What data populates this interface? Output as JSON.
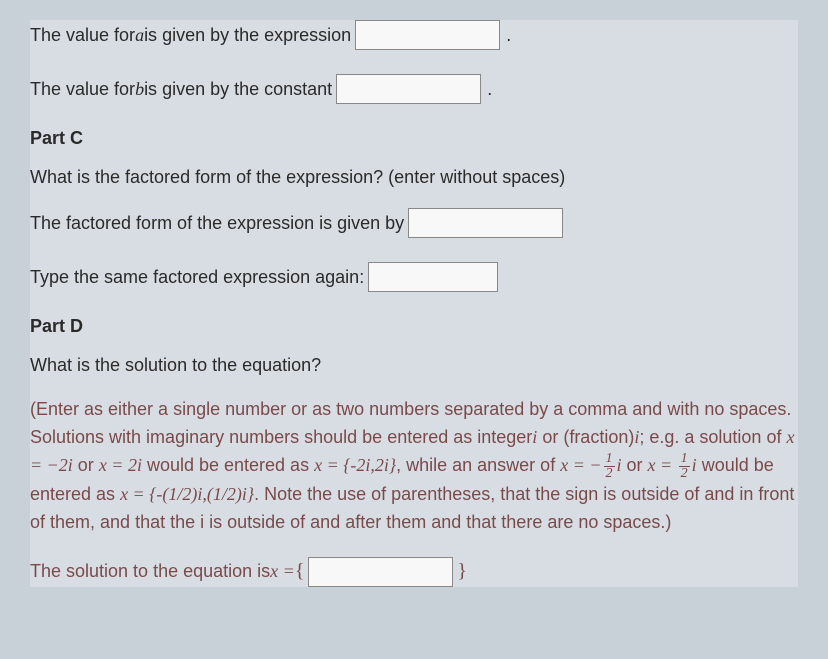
{
  "line_a": {
    "prefix": "The value for ",
    "variable": "a",
    "suffix": " is given by the expression",
    "trailing": "."
  },
  "line_b": {
    "prefix": "The value for ",
    "variable": "b",
    "suffix": " is given by the constant",
    "trailing": "."
  },
  "part_c": {
    "header": "Part C",
    "question": "What is the factored form of the expression? (enter without spaces)",
    "prompt1": "The factored form of the expression is given by",
    "prompt2": "Type the same factored expression again:"
  },
  "part_d": {
    "header": "Part D",
    "question": "What is the solution to the equation?",
    "instructions_1": "(Enter as either a single number or as two numbers separated by a comma and with no spaces. Solutions with imaginary numbers should be entered as integer",
    "instructions_i1": "i",
    "instructions_2": " or (fraction)",
    "instructions_i2": "i",
    "instructions_3": "; e.g. a solution of ",
    "math1_lhs": "x = −2i",
    "math_or": " or ",
    "math1_rhs": "x = 2i",
    "instructions_4": " would be entered as ",
    "math1_result": "x = {-2i,2i}",
    "instructions_5": ", while an answer of ",
    "math2_lhs_prefix": "x = −",
    "math2_lhs_i": "i",
    "math2_rhs_prefix": "x = ",
    "math2_rhs_i": "i",
    "instructions_6": " would be entered as ",
    "math2_result": "x = {-(1/2)i,(1/2)i}",
    "instructions_7": ". Note the use of parentheses, that the sign is outside of and in front of them, and that the i is outside of and after them and that there are no spaces.)",
    "solution_prefix": "The solution to the equation is ",
    "solution_var": "x = ",
    "open_brace": "{",
    "close_brace": "}",
    "frac_num": "1",
    "frac_den": "2"
  },
  "colors": {
    "background": "#c8d0d8",
    "text_normal": "#2a2a2a",
    "text_instruction": "#7a4a4a",
    "input_bg": "#f8f8f8",
    "input_border": "#888888"
  }
}
